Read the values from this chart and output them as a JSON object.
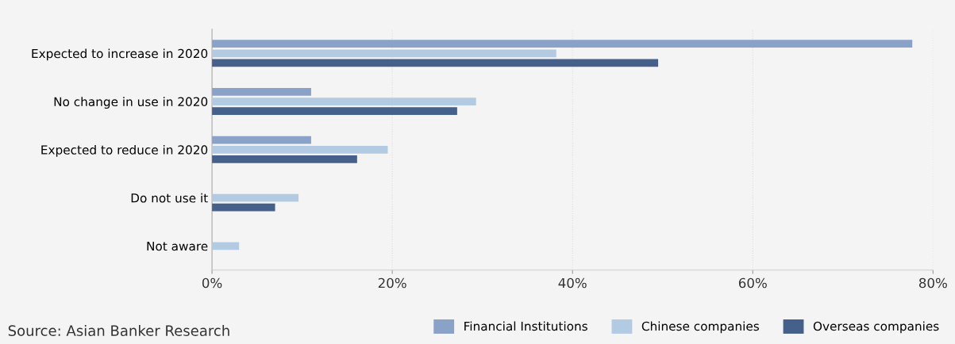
{
  "chart_data": {
    "type": "bar",
    "orientation": "horizontal",
    "categories": [
      "Expected to increase in 2020",
      "No change in use in 2020",
      "Expected to reduce in 2020",
      "Do not use it",
      "Not aware"
    ],
    "series": [
      {
        "name": "Financial Institutions",
        "color": "#8aa2c8",
        "values": [
          77.7,
          11,
          11,
          null,
          null
        ]
      },
      {
        "name": "Chinese companies",
        "color": "#b3cbe2",
        "values": [
          38.2,
          29.3,
          19.5,
          9.6,
          3
        ]
      },
      {
        "name": "Overseas companies",
        "color": "#46608c",
        "values": [
          49.5,
          27.2,
          16.1,
          7,
          null
        ]
      }
    ],
    "xlim": [
      0,
      80
    ],
    "xticks": [
      {
        "value": 0,
        "label": "0%"
      },
      {
        "value": 20,
        "label": "20%"
      },
      {
        "value": 40,
        "label": "40%"
      },
      {
        "value": 60,
        "label": "60%"
      },
      {
        "value": 80,
        "label": "80%"
      }
    ],
    "grid": "x",
    "legend": "bottom right",
    "annotations": [
      "Source: Asian Banker Research"
    ]
  }
}
